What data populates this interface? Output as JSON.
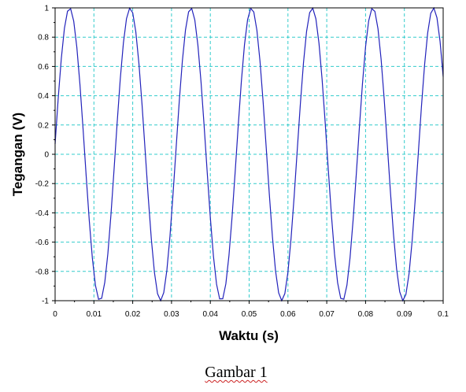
{
  "chart_data": {
    "type": "line",
    "title": "",
    "xlabel": "Waktu (s)",
    "ylabel": "Tegangan (V)",
    "xlim": [
      0,
      0.1
    ],
    "ylim": [
      -1,
      1
    ],
    "x_ticks": [
      "0",
      "0.01",
      "0.02",
      "0.03",
      "0.04",
      "0.05",
      "0.06",
      "0.07",
      "0.08",
      "0.09",
      "0.1"
    ],
    "y_ticks": [
      "1",
      "0.8",
      "0.6",
      "0.4",
      "0.2",
      "0",
      "-0.2",
      "-0.4",
      "-0.6",
      "-0.8",
      "-1"
    ],
    "grid": true,
    "grid_color": "#33cccc",
    "line_color": "#2222bb",
    "series": [
      {
        "function": "sine",
        "amplitude": 1,
        "frequency_hz": 64,
        "phase_rad": 0.07,
        "sample_step": 0.0008
      }
    ]
  },
  "caption": {
    "text": "Gambar 1"
  }
}
